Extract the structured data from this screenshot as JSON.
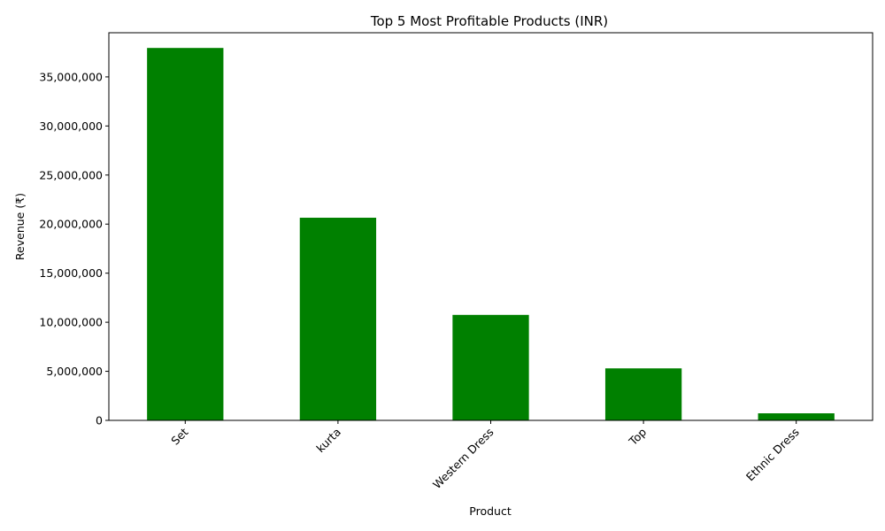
{
  "chart_data": {
    "type": "bar",
    "title": "Top 5 Most Profitable Products (INR)",
    "xlabel": "Product",
    "ylabel": "Revenue (₹)",
    "categories": [
      "Set",
      "kurta",
      "Western Dress",
      "Top",
      "Ethnic Dress"
    ],
    "values": [
      37950000,
      20650000,
      10750000,
      5300000,
      720000
    ],
    "ylim": [
      0,
      39500000
    ],
    "yticks": [
      0,
      5000000,
      10000000,
      15000000,
      20000000,
      25000000,
      30000000,
      35000000
    ],
    "ytick_labels": [
      "0",
      "5,000,000",
      "10,000,000",
      "15,000,000",
      "20,000,000",
      "25,000,000",
      "30,000,000",
      "35,000,000"
    ],
    "bar_color": "#008000",
    "grid": false,
    "legend": false
  }
}
